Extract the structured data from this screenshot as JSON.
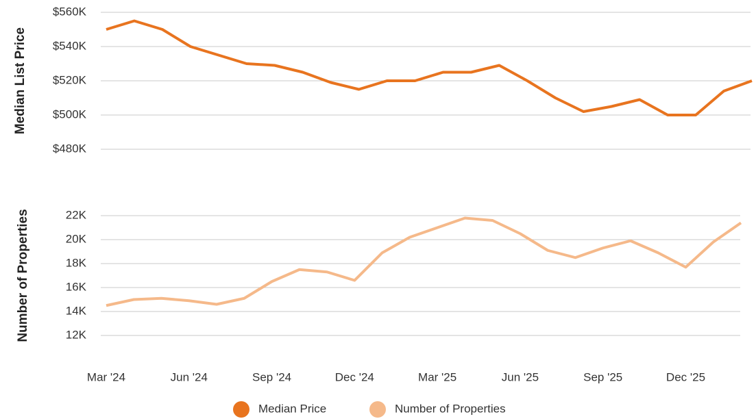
{
  "chart_data": [
    {
      "type": "line",
      "ylabel": "Median List Price",
      "ylim": [
        480000,
        560000
      ],
      "yticks": [
        {
          "value": 480000,
          "label": "$480K"
        },
        {
          "value": 500000,
          "label": "$500K"
        },
        {
          "value": 520000,
          "label": "$520K"
        },
        {
          "value": 540000,
          "label": "$540K"
        },
        {
          "value": 560000,
          "label": "$560K"
        }
      ],
      "grid": true,
      "series": [
        {
          "name": "Median Price",
          "color": "#e8741f",
          "values": [
            550000,
            555000,
            550000,
            540000,
            535000,
            530000,
            529000,
            525000,
            519000,
            515000,
            520000,
            520000,
            525000,
            525000,
            529000,
            520000,
            510000,
            502000,
            505000,
            509000,
            500000,
            500000,
            514000,
            520000
          ]
        }
      ]
    },
    {
      "type": "line",
      "ylabel": "Number of Properties",
      "categories": [
        "Mar '24",
        null,
        null,
        "Jun '24",
        null,
        null,
        "Sep '24",
        null,
        null,
        "Dec '24",
        null,
        null,
        "Mar '25",
        null,
        null,
        "Jun '25",
        null,
        null,
        "Sep '25",
        null,
        null,
        "Dec '25",
        null,
        null
      ],
      "ylim": [
        12000,
        22000
      ],
      "yticks": [
        {
          "value": 12000,
          "label": "12K"
        },
        {
          "value": 14000,
          "label": "14K"
        },
        {
          "value": 16000,
          "label": "16K"
        },
        {
          "value": 18000,
          "label": "18K"
        },
        {
          "value": 20000,
          "label": "20K"
        },
        {
          "value": 22000,
          "label": "22K"
        }
      ],
      "grid": true,
      "series": [
        {
          "name": "Number of Properties",
          "color": "#f5b98a",
          "values": [
            14500,
            15000,
            15100,
            14900,
            14600,
            15100,
            16500,
            17500,
            17300,
            16600,
            18900,
            20200,
            21000,
            21800,
            21600,
            20500,
            19100,
            18500,
            19300,
            19900,
            18900,
            17700,
            19800,
            21400
          ]
        }
      ]
    }
  ]
}
